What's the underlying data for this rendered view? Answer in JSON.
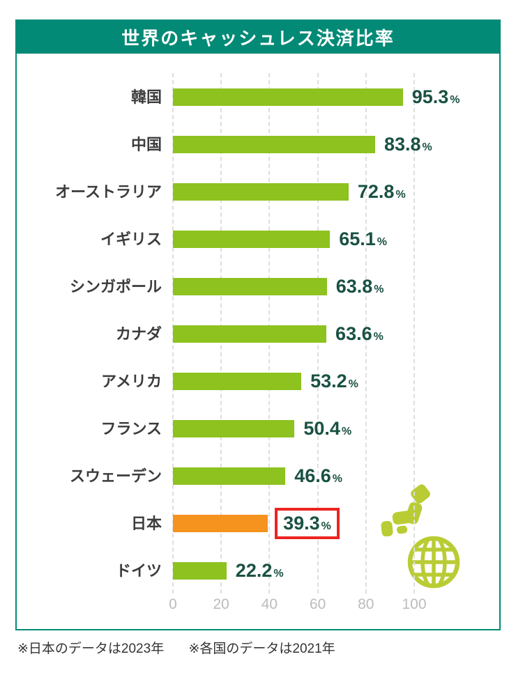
{
  "title": "世界のキャッシュレス決済比率",
  "footnotes": [
    "※日本のデータは2023年",
    "※各国のデータは2021年"
  ],
  "colors": {
    "header_teal": "#028a76",
    "bar_green": "#8dc21f",
    "bar_orange": "#f6921e",
    "value_text_green": "#1a5143",
    "highlight_box_red": "#ec2420",
    "icon_green": "#b9cc34",
    "label_text": "#3c3c3c",
    "axis_text": "#bcbcbc",
    "gridline_gray": "#dedede"
  },
  "icons": [
    "japan-map-icon",
    "globe-icon"
  ],
  "chart_data": {
    "type": "bar",
    "orientation": "horizontal",
    "title": "世界のキャッシュレス決済比率",
    "categories": [
      "韓国",
      "中国",
      "オーストラリア",
      "イギリス",
      "シンガポール",
      "カナダ",
      "アメリカ",
      "フランス",
      "スウェーデン",
      "日本",
      "ドイツ"
    ],
    "values": [
      95.3,
      83.8,
      72.8,
      65.1,
      63.8,
      63.6,
      53.2,
      50.4,
      46.6,
      39.3,
      22.2
    ],
    "unit": "%",
    "xlim": [
      0,
      100
    ],
    "xticks": [
      0,
      20,
      40,
      60,
      80,
      100
    ],
    "grid": "vertical-dashed",
    "legend": "none",
    "bar_color": "#8dc21f",
    "highlight": {
      "category": "日本",
      "index": 9,
      "bar_color": "#f6921e",
      "value_boxed_in_red": true
    }
  }
}
